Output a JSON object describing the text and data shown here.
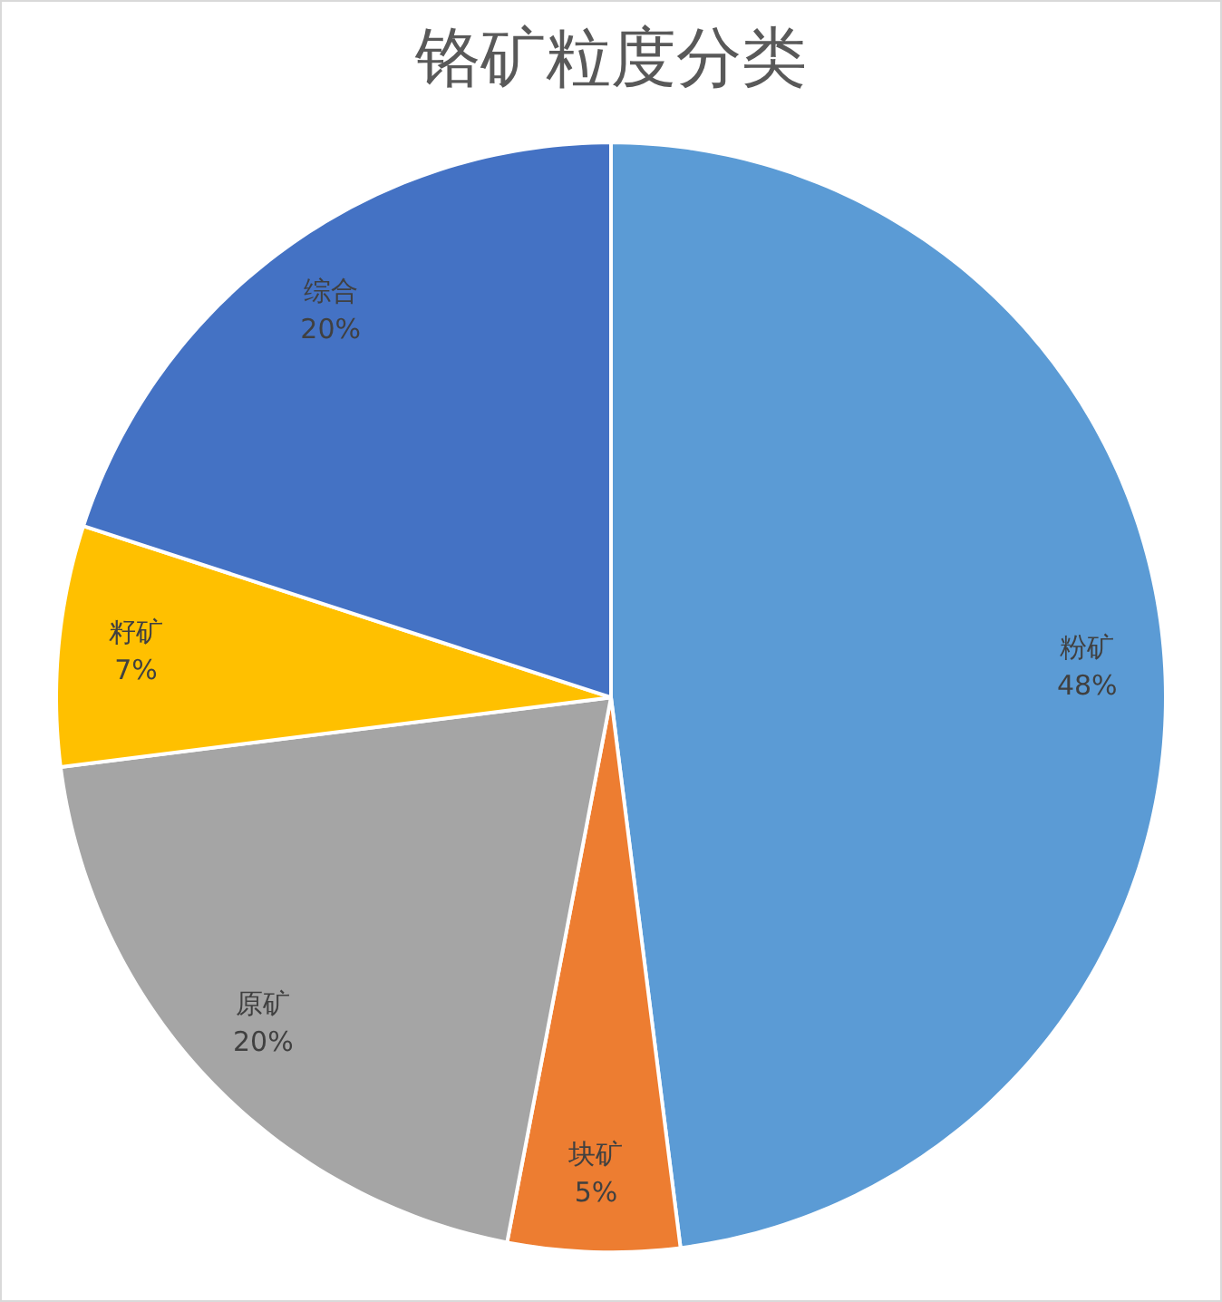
{
  "chart_data": {
    "type": "pie",
    "title": "铬矿粒度分类",
    "categories": [
      "粉矿",
      "块矿",
      "原矿",
      "籽矿",
      "综合"
    ],
    "values": [
      48,
      5,
      20,
      7,
      20
    ],
    "value_labels": [
      "48%",
      "5%",
      "20%",
      "7%",
      "20%"
    ],
    "colors": [
      "#5b9bd5",
      "#ed7d31",
      "#a5a5a5",
      "#ffc000",
      "#4472c4"
    ],
    "legend": false
  }
}
